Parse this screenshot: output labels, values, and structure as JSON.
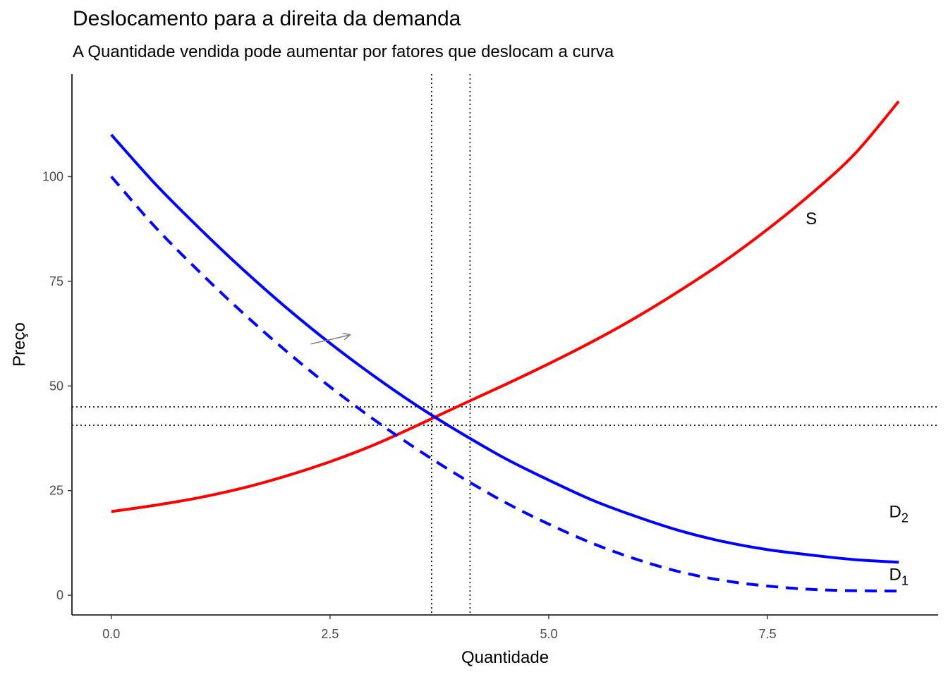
{
  "title": "Deslocamento para a direita da demanda",
  "subtitle": "A Quantidade vendida pode aumentar por fatores que deslocam a curva",
  "chart_data": {
    "type": "line",
    "title": "Deslocamento para a direita da demanda",
    "subtitle": "A Quantidade vendida pode aumentar por fatores que deslocam a curva",
    "xlabel": "Quantidade",
    "ylabel": "Preço",
    "xlim": [
      -0.45,
      9.45
    ],
    "ylim": [
      -4.7,
      124.5
    ],
    "xticks": [
      0.0,
      2.5,
      5.0,
      7.5
    ],
    "xtick_labels": [
      "0.0",
      "2.5",
      "5.0",
      "7.5"
    ],
    "yticks": [
      0,
      25,
      50,
      75,
      100
    ],
    "ytick_labels": [
      "0",
      "25",
      "50",
      "75",
      "100"
    ],
    "grid": false,
    "series": [
      {
        "name": "S",
        "color": "#ff0000",
        "dash": "solid",
        "x": [
          0,
          0.5,
          1,
          1.5,
          2,
          2.5,
          3,
          3.5,
          4,
          4.5,
          5,
          5.5,
          6,
          6.5,
          7,
          7.5,
          8,
          8.5,
          9
        ],
        "y": [
          20,
          21.5,
          23.3,
          25.6,
          28.5,
          31.9,
          35.9,
          40.6,
          45.5,
          50.3,
          55.3,
          60.6,
          66.4,
          72.8,
          79.7,
          87.4,
          95.9,
          105.5,
          118
        ]
      },
      {
        "name": "D_2",
        "color": "#0000ff",
        "dash": "solid",
        "x": [
          0,
          0.5,
          1,
          1.5,
          2,
          2.5,
          3,
          3.5,
          4,
          4.5,
          5,
          5.5,
          6,
          6.5,
          7,
          7.5,
          8,
          8.5,
          9
        ],
        "y": [
          110,
          98.3,
          87.8,
          77.9,
          68.7,
          60.2,
          52.4,
          45.2,
          38.7,
          32.7,
          27.5,
          22.7,
          18.8,
          15.4,
          12.8,
          10.9,
          9.6,
          8.5,
          7.9
        ]
      },
      {
        "name": "D_1",
        "color": "#0000ff",
        "dash": "dashed",
        "x": [
          0,
          0.5,
          1,
          1.5,
          2,
          2.5,
          3,
          3.5,
          4,
          4.5,
          5,
          5.5,
          6,
          6.5,
          7,
          7.5,
          8,
          8.5,
          9
        ],
        "y": [
          100,
          88,
          77.4,
          67.5,
          58.3,
          49.8,
          42,
          34.8,
          28.2,
          22.2,
          17,
          12.4,
          8.6,
          5.6,
          3.5,
          2.2,
          1.4,
          1.1,
          1
        ]
      }
    ],
    "vlines": [
      3.66,
      4.1
    ],
    "hlines": [
      40.6,
      45
    ],
    "line_style": "dotted",
    "line_color": "#000000",
    "annotations": [
      {
        "text": "S",
        "x": 8.0,
        "y": 90
      },
      {
        "text": "D",
        "sub": "2",
        "x": 9.0,
        "y": 20
      },
      {
        "text": "D",
        "sub": "1",
        "x": 9.0,
        "y": 5
      }
    ],
    "arrow": {
      "from": [
        2.28,
        60
      ],
      "to": [
        2.73,
        62.2
      ],
      "color": "#808080"
    }
  }
}
